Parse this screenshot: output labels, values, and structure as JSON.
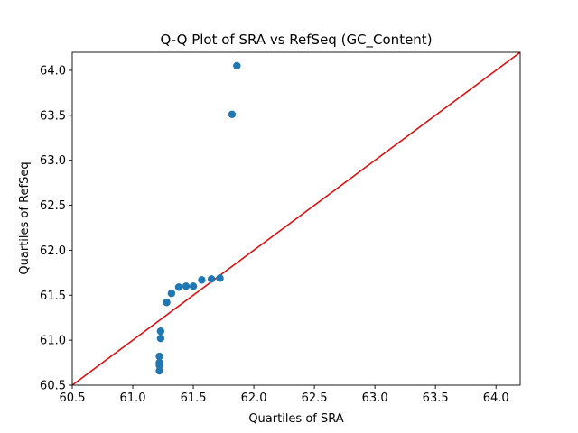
{
  "chart_data": {
    "type": "scatter",
    "title": "Q-Q Plot of SRA vs RefSeq (GC_Content)",
    "xlabel": "Quartiles of SRA",
    "ylabel": "Quartiles of RefSeq",
    "xlim": [
      60.5,
      64.2
    ],
    "ylim": [
      60.5,
      64.2
    ],
    "xticks": [
      "60.5",
      "61.0",
      "61.5",
      "62.0",
      "62.5",
      "63.0",
      "63.5",
      "64.0"
    ],
    "yticks": [
      "60.5",
      "61.0",
      "61.5",
      "62.0",
      "62.5",
      "63.0",
      "63.5",
      "64.0"
    ],
    "grid": false,
    "points": [
      {
        "x": 61.22,
        "y": 60.66
      },
      {
        "x": 61.22,
        "y": 60.72
      },
      {
        "x": 61.22,
        "y": 60.75
      },
      {
        "x": 61.22,
        "y": 60.82
      },
      {
        "x": 61.23,
        "y": 61.02
      },
      {
        "x": 61.23,
        "y": 61.1
      },
      {
        "x": 61.28,
        "y": 61.42
      },
      {
        "x": 61.32,
        "y": 61.52
      },
      {
        "x": 61.38,
        "y": 61.59
      },
      {
        "x": 61.44,
        "y": 61.6
      },
      {
        "x": 61.5,
        "y": 61.6
      },
      {
        "x": 61.57,
        "y": 61.67
      },
      {
        "x": 61.65,
        "y": 61.68
      },
      {
        "x": 61.72,
        "y": 61.69
      },
      {
        "x": 61.82,
        "y": 63.51
      },
      {
        "x": 61.86,
        "y": 64.05
      }
    ],
    "reference_line": {
      "x": [
        60.5,
        64.2
      ],
      "y": [
        60.5,
        64.2
      ]
    },
    "colors": {
      "points": "#1f77b4",
      "reference_line": "#e01010",
      "axes": "#000000"
    }
  }
}
